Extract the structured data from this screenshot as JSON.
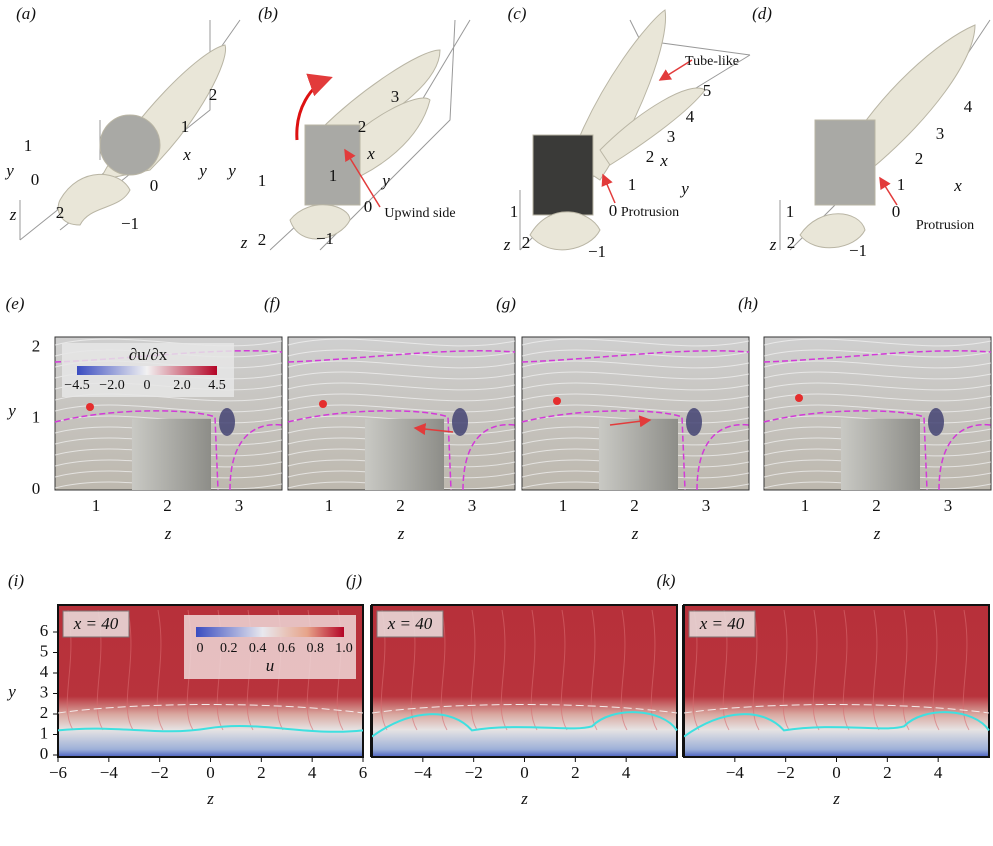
{
  "panels_3d": [
    {
      "label": "(a)",
      "texts": [
        "2",
        "1",
        "x",
        "0",
        "y",
        "−1",
        "1",
        "0",
        "y",
        "z",
        "2"
      ]
    },
    {
      "label": "(b)",
      "texts": [
        "3",
        "2",
        "x",
        "1",
        "y",
        "0",
        "Upwind side",
        "−1",
        "y",
        "1",
        "z",
        "2"
      ]
    },
    {
      "label": "(c)",
      "texts": [
        "Tube-like",
        "5",
        "4",
        "3",
        "2",
        "x",
        "1",
        "y",
        "0",
        "Protrusion",
        "1",
        "z",
        "2",
        "−1"
      ]
    },
    {
      "label": "(d)",
      "texts": [
        "4",
        "3",
        "x",
        "2",
        "1",
        "0",
        "Protrusion",
        "1",
        "z",
        "2",
        "−1"
      ]
    }
  ],
  "slice_panels": [
    {
      "label": "(e)",
      "x_ticks": [
        "1",
        "2",
        "3"
      ],
      "x_label": "z"
    },
    {
      "label": "(f)",
      "x_ticks": [
        "1",
        "2",
        "3"
      ],
      "x_label": "z"
    },
    {
      "label": "(g)",
      "x_ticks": [
        "1",
        "2",
        "3"
      ],
      "x_label": "z"
    },
    {
      "label": "(h)",
      "x_ticks": [
        "1",
        "2",
        "3"
      ],
      "x_label": "z"
    }
  ],
  "slice_y_ticks": [
    "0",
    "1",
    "2"
  ],
  "slice_y_label": "y",
  "slice_colorbar": {
    "title": "∂u/∂x",
    "ticks": [
      "−4.5",
      "−2.0",
      "0",
      "2.0",
      "4.5"
    ]
  },
  "plane_panels": [
    {
      "label": "(i)",
      "tag": "x = 40",
      "x_ticks": [
        "−6",
        "−4",
        "−2",
        "0",
        "2",
        "4",
        "6"
      ],
      "x_label": "z"
    },
    {
      "label": "(j)",
      "tag": "x = 40",
      "x_ticks": [
        "−4",
        "−2",
        "0",
        "2",
        "4"
      ],
      "x_label": "z"
    },
    {
      "label": "(k)",
      "tag": "x = 40",
      "x_ticks": [
        "−4",
        "−2",
        "0",
        "2",
        "4"
      ],
      "x_label": "z"
    }
  ],
  "plane_y_ticks": [
    "0",
    "1",
    "2",
    "3",
    "4",
    "5",
    "6"
  ],
  "plane_y_label": "y",
  "plane_colorbar": {
    "title": "u",
    "ticks": [
      "0",
      "0.2",
      "0.4",
      "0.6",
      "0.8",
      "1.0"
    ]
  }
}
